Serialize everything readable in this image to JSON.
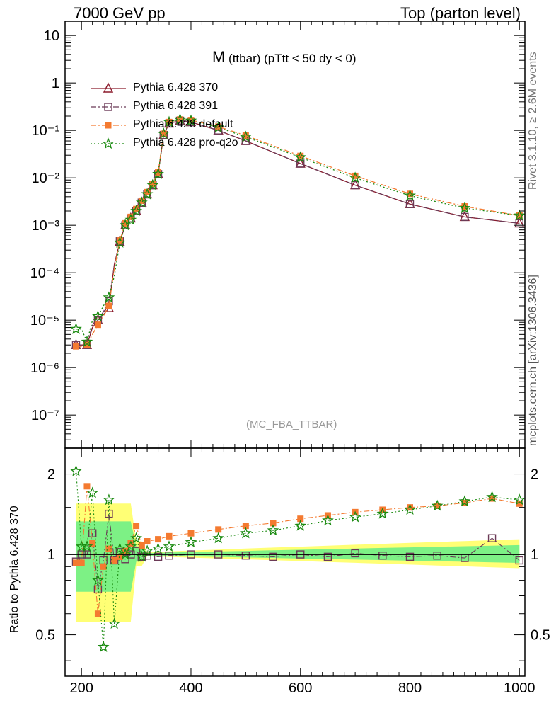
{
  "header": {
    "left": "7000 GeV pp",
    "right": "Top (parton level)"
  },
  "side_labels": {
    "rivet": "Rivet 3.1.10, ≥ 2.6M events",
    "mcplots": "mcplots.cern.ch [arXiv:1306.3436]"
  },
  "plot": {
    "title_main": "M",
    "title_sub": " (ttbar) (pTtt < 50 dy < 0)",
    "watermark": "(MC_FBA_TTBAR)",
    "ratio_ylabel": "Ratio to Pythia 6.428 370"
  },
  "legend": [
    {
      "label": "Pythia 6.428 370",
      "color": "#8b1a2b",
      "marker": "triangle-open",
      "dash": "solid"
    },
    {
      "label": "Pythia 6.428 391",
      "color": "#6b3a57",
      "marker": "square-open",
      "dash": "dashdot"
    },
    {
      "label": "Pythia 6.428 default",
      "color": "#f47a30",
      "marker": "square-filled",
      "dash": "dashdot"
    },
    {
      "label": "Pythia 6.428 pro-q2o",
      "color": "#1a8a10",
      "marker": "star",
      "dash": "dotted"
    }
  ],
  "chart_data": {
    "type": "line",
    "xlim": [
      170,
      1010
    ],
    "xticks": [
      "200",
      "400",
      "600",
      "800",
      "1000"
    ],
    "main_panel": {
      "yscale": "log",
      "ylim": [
        2e-08,
        20
      ],
      "yticks": [
        "10",
        "1",
        "10⁻¹",
        "10⁻²",
        "10⁻³",
        "10⁻⁴",
        "10⁻⁵",
        "10⁻⁶",
        "10⁻⁷"
      ],
      "x": [
        190,
        200,
        210,
        220,
        230,
        240,
        250,
        260,
        270,
        280,
        290,
        300,
        310,
        320,
        330,
        340,
        350,
        360,
        380,
        400,
        450,
        500,
        600,
        700,
        800,
        900,
        1000
      ],
      "series": [
        {
          "name": "Pythia 6.428 370",
          "values": [
            3e-06,
            3e-06,
            3e-06,
            7e-06,
            1e-05,
            1.3e-05,
            1.8e-05,
            0.00015,
            0.00045,
            0.001,
            0.0014,
            0.002,
            0.003,
            0.0045,
            0.007,
            0.012,
            0.08,
            0.14,
            0.16,
            0.15,
            0.1,
            0.06,
            0.02,
            0.007,
            0.0028,
            0.0015,
            0.0011
          ]
        },
        {
          "name": "Pythia 6.428 391",
          "values": [
            3e-06,
            3e-06,
            3e-06,
            8e-06,
            1e-05,
            1.5e-05,
            2.5e-05,
            0.00014,
            0.00046,
            0.001,
            0.0014,
            0.002,
            0.003,
            0.0045,
            0.007,
            0.012,
            0.08,
            0.14,
            0.16,
            0.15,
            0.1,
            0.06,
            0.02,
            0.007,
            0.0028,
            0.0015,
            0.0011
          ]
        },
        {
          "name": "Pythia 6.428 default",
          "values": [
            2.8e-06,
            2.8e-06,
            3e-06,
            5e-06,
            8e-06,
            1.2e-05,
            2e-05,
            0.00012,
            0.00048,
            0.0011,
            0.0015,
            0.0022,
            0.0033,
            0.005,
            0.0075,
            0.013,
            0.085,
            0.15,
            0.17,
            0.165,
            0.12,
            0.078,
            0.029,
            0.011,
            0.0046,
            0.0025,
            0.0016
          ]
        },
        {
          "name": "Pythia 6.428 pro-q2o",
          "values": [
            6.5e-06,
            6.5e-06,
            3.5e-06,
            1e-05,
            1.2e-05,
            2e-05,
            3e-05,
            8.5e-05,
            0.00043,
            0.001,
            0.0013,
            0.002,
            0.003,
            0.0045,
            0.007,
            0.012,
            0.085,
            0.15,
            0.17,
            0.16,
            0.115,
            0.073,
            0.027,
            0.01,
            0.0042,
            0.0023,
            0.0016
          ]
        }
      ]
    },
    "ratio_panel": {
      "yscale": "log",
      "ylim": [
        0.35,
        2.5
      ],
      "yticks": [
        "2",
        "1",
        "0.5"
      ],
      "x": [
        190,
        200,
        210,
        220,
        230,
        240,
        250,
        260,
        270,
        280,
        290,
        300,
        310,
        320,
        340,
        360,
        400,
        450,
        500,
        550,
        600,
        650,
        700,
        750,
        800,
        850,
        900,
        950,
        1000
      ],
      "series": [
        {
          "name": "Pythia 6.428 391",
          "values": [
            0.94,
            1.0,
            1.0,
            1.2,
            0.74,
            0.95,
            1.42,
            0.95,
            1.02,
            0.96,
            1.0,
            1.03,
            0.98,
            0.99,
            0.98,
            0.99,
            1.0,
            1.0,
            0.99,
            0.98,
            1.0,
            0.98,
            1.01,
            0.99,
            0.98,
            0.99,
            0.97,
            1.15,
            0.95
          ]
        },
        {
          "name": "Pythia 6.428 default",
          "values": [
            0.93,
            0.93,
            1.8,
            1.1,
            0.6,
            0.9,
            1.05,
            0.95,
            0.98,
            1.03,
            1.1,
            1.28,
            1.08,
            1.12,
            1.14,
            1.17,
            1.2,
            1.24,
            1.28,
            1.31,
            1.36,
            1.4,
            1.44,
            1.47,
            1.5,
            1.52,
            1.56,
            1.62,
            1.55
          ]
        },
        {
          "name": "Pythia 6.428 pro-q2o",
          "values": [
            2.05,
            1.07,
            1.07,
            1.7,
            0.8,
            0.45,
            1.6,
            0.55,
            1.05,
            1.0,
            1.07,
            1.15,
            0.98,
            1.03,
            1.05,
            1.07,
            1.11,
            1.15,
            1.2,
            1.23,
            1.28,
            1.34,
            1.38,
            1.42,
            1.47,
            1.52,
            1.58,
            1.64,
            1.6
          ]
        }
      ]
    }
  }
}
